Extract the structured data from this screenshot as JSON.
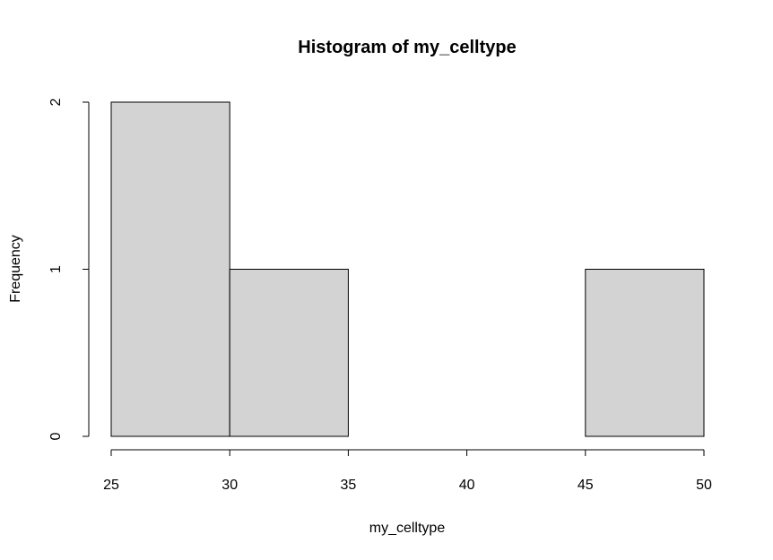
{
  "chart_data": {
    "type": "bar",
    "title": "Histogram of my_celltype",
    "xlabel": "my_celltype",
    "ylabel": "Frequency",
    "bins": [
      {
        "start": 25,
        "end": 30,
        "count": 2
      },
      {
        "start": 30,
        "end": 35,
        "count": 1
      },
      {
        "start": 35,
        "end": 40,
        "count": 0
      },
      {
        "start": 40,
        "end": 45,
        "count": 0
      },
      {
        "start": 45,
        "end": 50,
        "count": 1
      }
    ],
    "xlim": [
      25,
      50
    ],
    "ylim": [
      0,
      2
    ],
    "x_ticks": [
      25,
      30,
      35,
      40,
      45,
      50
    ],
    "y_ticks": [
      0,
      1,
      2
    ],
    "bar_color": "#d3d3d3",
    "grid": false
  }
}
